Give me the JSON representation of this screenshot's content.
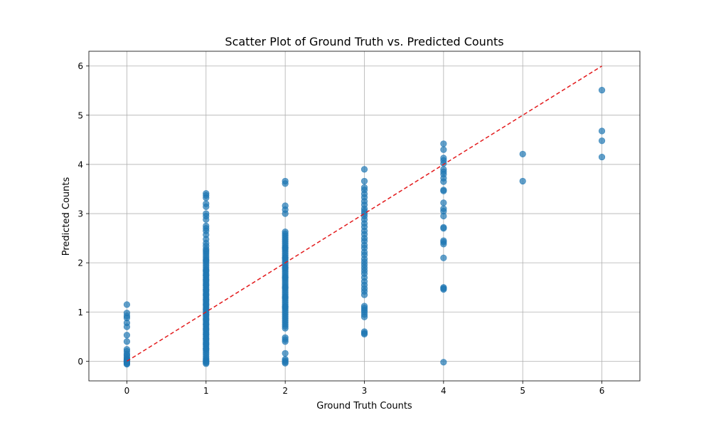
{
  "chart_data": {
    "type": "scatter",
    "title": "Scatter Plot of Ground Truth vs. Predicted Counts",
    "xlabel": "Ground Truth Counts",
    "ylabel": "Predicted Counts",
    "xlim": [
      -0.48,
      6.48
    ],
    "ylim": [
      -0.4,
      6.3
    ],
    "xticks": [
      0,
      1,
      2,
      3,
      4,
      5,
      6
    ],
    "yticks": [
      0,
      1,
      2,
      3,
      4,
      5,
      6
    ],
    "grid": true,
    "marker_color": "#1f77b4",
    "reference_line": {
      "style": "dashed",
      "color": "#e31a1c",
      "x": [
        0,
        6
      ],
      "y": [
        0,
        6
      ]
    },
    "series": [
      {
        "x": [
          0,
          0,
          0,
          0,
          0,
          0,
          0,
          0,
          0,
          0,
          0,
          0,
          0,
          0,
          0,
          0,
          0,
          0,
          0,
          0,
          0,
          0,
          0
        ],
        "y": [
          1.15,
          0.98,
          0.92,
          0.88,
          0.78,
          0.7,
          0.53,
          0.4,
          0.24,
          0.2,
          0.15,
          0.12,
          0.08,
          0.05,
          0.03,
          0.02,
          0.01,
          0.0,
          -0.01,
          -0.02,
          -0.03,
          -0.05,
          -0.06
        ]
      },
      {
        "x": [
          1,
          1,
          1,
          1,
          1,
          1,
          1,
          1,
          1,
          1,
          1,
          1,
          1,
          1,
          1,
          1,
          1,
          1,
          1,
          1,
          1,
          1,
          1,
          1,
          1,
          1,
          1,
          1,
          1,
          1,
          1,
          1,
          1,
          1,
          1,
          1,
          1,
          1,
          1,
          1,
          1,
          1,
          1,
          1,
          1,
          1,
          1,
          1,
          1,
          1,
          1,
          1,
          1,
          1,
          1,
          1,
          1,
          1,
          1,
          1,
          1,
          1,
          1,
          1,
          1,
          1,
          1,
          1,
          1,
          1,
          1,
          1,
          1,
          1,
          1,
          1,
          1,
          1,
          1,
          1,
          1,
          1,
          1,
          1,
          1,
          1,
          1,
          1,
          1,
          1,
          1,
          1,
          1,
          1,
          1
        ],
        "y": [
          3.41,
          3.37,
          3.32,
          3.2,
          3.14,
          3.0,
          2.95,
          2.88,
          2.75,
          2.7,
          2.65,
          2.57,
          2.48,
          2.4,
          2.34,
          2.28,
          2.22,
          2.18,
          2.14,
          2.1,
          2.06,
          2.02,
          1.98,
          1.94,
          1.9,
          1.86,
          1.82,
          1.78,
          1.74,
          1.7,
          1.66,
          1.62,
          1.58,
          1.54,
          1.5,
          1.46,
          1.42,
          1.38,
          1.34,
          1.3,
          1.26,
          1.22,
          1.18,
          1.14,
          1.1,
          1.06,
          1.02,
          0.98,
          0.94,
          0.9,
          0.86,
          0.82,
          0.78,
          0.74,
          0.7,
          0.66,
          0.62,
          0.58,
          0.54,
          0.5,
          0.46,
          0.42,
          0.38,
          0.34,
          0.3,
          0.26,
          0.22,
          0.18,
          0.14,
          0.1,
          0.06,
          0.03,
          0.01,
          -0.01,
          -0.03,
          -0.05,
          0.25,
          0.45,
          0.65,
          0.85,
          1.05,
          1.25,
          1.45,
          1.65,
          1.85,
          2.05,
          2.25,
          0.35,
          0.55,
          0.75,
          0.95,
          1.15,
          1.35,
          1.55,
          1.75
        ]
      },
      {
        "x": [
          2,
          2,
          2,
          2,
          2,
          2,
          2,
          2,
          2,
          2,
          2,
          2,
          2,
          2,
          2,
          2,
          2,
          2,
          2,
          2,
          2,
          2,
          2,
          2,
          2,
          2,
          2,
          2,
          2,
          2,
          2,
          2,
          2,
          2,
          2,
          2,
          2,
          2,
          2,
          2,
          2,
          2,
          2,
          2,
          2,
          2,
          2,
          2,
          2,
          2,
          2,
          2,
          2,
          2,
          2,
          2,
          2,
          2,
          2,
          2,
          2,
          2,
          2,
          2,
          2,
          2,
          2,
          2,
          2,
          2
        ],
        "y": [
          3.66,
          3.61,
          3.16,
          3.08,
          3.0,
          2.63,
          2.59,
          2.55,
          2.51,
          2.47,
          2.43,
          2.39,
          2.35,
          2.31,
          2.27,
          2.23,
          2.19,
          2.15,
          2.11,
          2.07,
          2.03,
          1.99,
          1.95,
          1.91,
          1.87,
          1.83,
          1.79,
          1.75,
          1.71,
          1.67,
          1.63,
          1.59,
          1.55,
          1.51,
          1.47,
          1.43,
          1.39,
          1.35,
          1.31,
          1.27,
          1.23,
          1.19,
          1.15,
          1.11,
          1.07,
          1.03,
          0.99,
          0.95,
          0.91,
          0.87,
          0.83,
          0.79,
          0.75,
          0.71,
          0.67,
          0.48,
          0.44,
          0.4,
          0.16,
          0.04,
          0.01,
          -0.02,
          -0.04,
          1.1,
          1.3,
          1.5,
          1.7,
          1.9,
          2.1,
          2.3
        ]
      },
      {
        "x": [
          3,
          3,
          3,
          3,
          3,
          3,
          3,
          3,
          3,
          3,
          3,
          3,
          3,
          3,
          3,
          3,
          3,
          3,
          3,
          3,
          3,
          3,
          3,
          3,
          3,
          3,
          3,
          3,
          3,
          3,
          3,
          3,
          3,
          3,
          3,
          3,
          3,
          3,
          3,
          3,
          3,
          3,
          3,
          3
        ],
        "y": [
          3.9,
          3.66,
          3.53,
          3.48,
          3.4,
          3.33,
          3.25,
          3.18,
          3.1,
          3.05,
          3.0,
          2.95,
          2.88,
          2.8,
          2.73,
          2.65,
          2.58,
          2.5,
          2.44,
          2.36,
          2.3,
          2.22,
          2.16,
          2.08,
          2.02,
          1.96,
          1.9,
          1.84,
          1.78,
          1.7,
          1.62,
          1.55,
          1.48,
          1.42,
          1.35,
          1.12,
          1.08,
          1.04,
          1.0,
          0.95,
          0.9,
          0.6,
          0.57,
          0.55
        ]
      },
      {
        "x": [
          4,
          4,
          4,
          4,
          4,
          4,
          4,
          4,
          4,
          4,
          4,
          4,
          4,
          4,
          4,
          4,
          4,
          4,
          4,
          4,
          4,
          4,
          4,
          4,
          4,
          4
        ],
        "y": [
          4.42,
          4.3,
          4.13,
          4.08,
          4.02,
          3.9,
          3.85,
          3.8,
          3.72,
          3.65,
          3.48,
          3.46,
          3.22,
          3.1,
          3.05,
          2.95,
          2.72,
          2.7,
          2.45,
          2.42,
          2.38,
          2.1,
          1.5,
          1.48,
          1.46,
          -0.02
        ]
      },
      {
        "x": [
          5,
          5
        ],
        "y": [
          4.21,
          3.66
        ]
      },
      {
        "x": [
          6,
          6,
          6,
          6
        ],
        "y": [
          5.51,
          4.68,
          4.48,
          4.15
        ]
      }
    ]
  }
}
